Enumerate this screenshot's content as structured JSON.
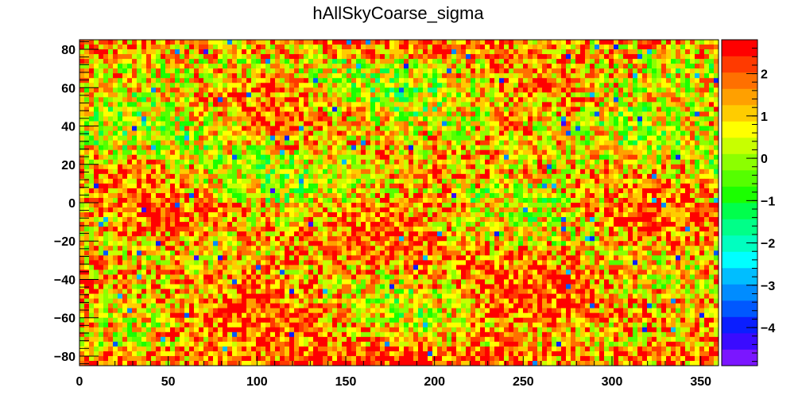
{
  "chart_data": {
    "type": "heatmap",
    "title": "hAllSkyCoarse_sigma",
    "xlabel": "",
    "ylabel": "",
    "xlim": [
      0,
      360
    ],
    "ylim": [
      -85,
      85
    ],
    "x_ticks": [
      0,
      50,
      100,
      150,
      200,
      250,
      300,
      350
    ],
    "y_ticks": [
      -80,
      -60,
      -40,
      -20,
      0,
      20,
      40,
      60,
      80
    ],
    "x_tick_labels": [
      "0",
      "50",
      "100",
      "150",
      "200",
      "250",
      "300",
      "350"
    ],
    "y_tick_labels": [
      "−80",
      "−60",
      "−40",
      "−20",
      "0",
      "20",
      "40",
      "60",
      "80"
    ],
    "colorbar": {
      "range": [
        -4.9,
        2.8
      ],
      "ticks": [
        -4,
        -3,
        -2,
        -1,
        0,
        1,
        2
      ],
      "tick_labels": [
        "−4",
        "−3",
        "−2",
        "−1",
        "0",
        "1",
        "2"
      ],
      "palette": [
        "#7b16ff",
        "#3a0bff",
        "#0a1eff",
        "#0058ff",
        "#008cff",
        "#00beff",
        "#00ffff",
        "#00ffc0",
        "#00ff88",
        "#00ff4c",
        "#1bff00",
        "#55ff00",
        "#8cff00",
        "#c8ff00",
        "#ffff00",
        "#ffcc00",
        "#ffa000",
        "#ff7000",
        "#ff3a00",
        "#ff0000"
      ]
    },
    "grid": false,
    "description_values": "2D sky map of sigma values over longitude 0-360 and latitude -85 to 85; values predominantly between -1.5 and 2.8"
  }
}
